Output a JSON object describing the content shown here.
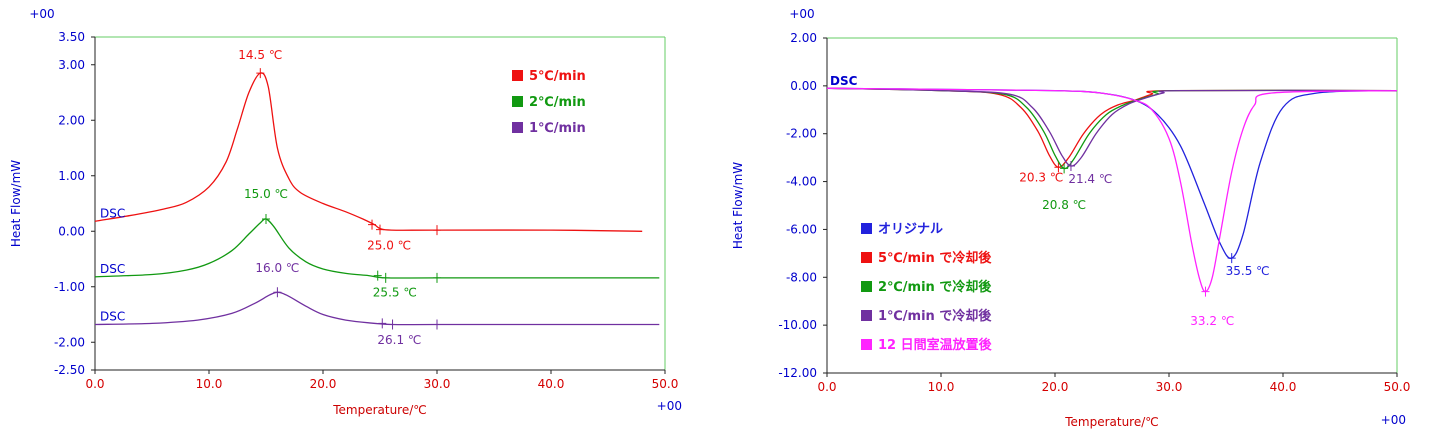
{
  "colors": {
    "axis_text": "#0000cc",
    "tick_label": "#d40000",
    "axis_title": "#cc0000",
    "plot_border": "#66cc66",
    "red": "#ee1111",
    "green": "#119911",
    "purple": "#7030a0",
    "blue": "#2222dd",
    "magenta": "#ff22ff",
    "curve_label": "#0000cc"
  },
  "chart_data": [
    {
      "type": "line",
      "xlabel": "Temperature/℃",
      "ylabel": "Heat Flow/mW",
      "xlim": [
        0,
        50
      ],
      "ylim": [
        -2.5,
        3.5
      ],
      "x_ticks": [
        0,
        10,
        20,
        30,
        40,
        50
      ],
      "x_tick_labels": [
        "0.0",
        "10.0",
        "20.0",
        "30.0",
        "40.0",
        "50.0"
      ],
      "y_ticks": [
        3.5,
        3.0,
        2.0,
        1.0,
        0.0,
        -1.0,
        -2.0,
        -2.5
      ],
      "y_tick_labels": [
        "3.50",
        "3.00",
        "2.00",
        "1.00",
        "0.00",
        "-1.00",
        "-2.00",
        "-2.50"
      ],
      "x_exponent": "+00",
      "y_exponent": "+00",
      "grid": false,
      "legend_position": "top-right",
      "curve_label": "DSC",
      "series": [
        {
          "name": "5℃/min",
          "color": "red",
          "x": [
            0,
            3,
            6,
            8,
            10,
            11.5,
            12.5,
            13.5,
            14.5,
            15.2,
            16,
            17,
            18,
            20,
            22,
            23.5,
            24.5,
            25,
            26,
            30,
            40,
            48
          ],
          "y": [
            0.18,
            0.28,
            0.4,
            0.52,
            0.8,
            1.25,
            1.85,
            2.5,
            2.85,
            2.6,
            1.5,
            0.95,
            0.7,
            0.5,
            0.35,
            0.22,
            0.12,
            0.05,
            0.02,
            0.02,
            0.02,
            0.0
          ],
          "markers": [
            {
              "x": 14.5,
              "y": 2.85
            },
            {
              "x": 24.3,
              "y": 0.12
            },
            {
              "x": 25.0,
              "y": 0.03
            },
            {
              "x": 30.0,
              "y": 0.02
            }
          ],
          "labels": [
            {
              "text": "14.5 ℃",
              "x": 14.5,
              "y": 3.1
            },
            {
              "text": "25.0 ℃",
              "x": 25.8,
              "y": -0.33
            }
          ]
        },
        {
          "name": "2℃/min",
          "color": "green",
          "x": [
            0,
            5,
            8,
            10,
            12,
            13.5,
            14.5,
            15.0,
            15.7,
            17,
            18.5,
            20,
            22,
            24,
            25.5,
            30,
            40,
            49.5
          ],
          "y": [
            -0.82,
            -0.78,
            -0.7,
            -0.58,
            -0.35,
            -0.05,
            0.15,
            0.22,
            0.08,
            -0.3,
            -0.55,
            -0.68,
            -0.76,
            -0.8,
            -0.84,
            -0.84,
            -0.84,
            -0.84
          ],
          "markers": [
            {
              "x": 15.0,
              "y": 0.22
            },
            {
              "x": 24.8,
              "y": -0.8
            },
            {
              "x": 25.5,
              "y": -0.84
            },
            {
              "x": 30.0,
              "y": -0.84
            }
          ],
          "labels": [
            {
              "text": "15.0 ℃",
              "x": 15.0,
              "y": 0.6
            },
            {
              "text": "25.5 ℃",
              "x": 26.3,
              "y": -1.18
            }
          ]
        },
        {
          "name": "1℃/min",
          "color": "purple",
          "x": [
            0,
            5,
            9,
            12,
            14,
            15.3,
            16.0,
            16.8,
            18.5,
            20,
            22,
            24,
            26.1,
            30,
            40,
            49.5
          ],
          "y": [
            -1.68,
            -1.66,
            -1.6,
            -1.48,
            -1.3,
            -1.15,
            -1.1,
            -1.15,
            -1.35,
            -1.5,
            -1.6,
            -1.65,
            -1.68,
            -1.68,
            -1.68,
            -1.68
          ],
          "markers": [
            {
              "x": 16.0,
              "y": -1.1
            },
            {
              "x": 25.2,
              "y": -1.66
            },
            {
              "x": 26.1,
              "y": -1.68
            },
            {
              "x": 30.0,
              "y": -1.68
            }
          ],
          "labels": [
            {
              "text": "16.0 ℃",
              "x": 16.0,
              "y": -0.73
            },
            {
              "text": "26.1 ℃",
              "x": 26.7,
              "y": -2.03
            }
          ]
        }
      ]
    },
    {
      "type": "line",
      "xlabel": "Temperature/℃",
      "ylabel": "Heat Flow/mW",
      "xlim": [
        0,
        50
      ],
      "ylim": [
        -12,
        2
      ],
      "x_ticks": [
        0,
        10,
        20,
        30,
        40,
        50
      ],
      "x_tick_labels": [
        "0.0",
        "10.0",
        "20.0",
        "30.0",
        "40.0",
        "50.0"
      ],
      "y_ticks": [
        2,
        0,
        -2,
        -4,
        -6,
        -8,
        -10,
        -12
      ],
      "y_tick_labels": [
        "2.00",
        "0.00",
        "-2.00",
        "-4.00",
        "-6.00",
        "-8.00",
        "-10.00",
        "-12.00"
      ],
      "x_exponent": "+00",
      "y_exponent": "+00",
      "grid": false,
      "legend_position": "bottom-left",
      "curve_label": "DSC",
      "series": [
        {
          "name": "オリジナル",
          "color": "blue",
          "x": [
            0,
            10,
            20,
            24,
            27,
            29,
            31,
            33,
            34.5,
            35.5,
            36.5,
            38,
            40,
            43,
            50
          ],
          "y": [
            -0.1,
            -0.15,
            -0.2,
            -0.3,
            -0.6,
            -1.2,
            -2.5,
            -4.8,
            -6.6,
            -7.2,
            -6.2,
            -3.2,
            -0.9,
            -0.3,
            -0.2
          ],
          "markers": [
            {
              "x": 35.5,
              "y": -7.2
            }
          ],
          "labels": [
            {
              "text": "35.5 ℃",
              "x": 36.9,
              "y": -7.9
            }
          ]
        },
        {
          "name": "5℃/min で冷却後",
          "color": "red",
          "x": [
            0,
            10,
            15,
            17,
            18.5,
            19.5,
            20.3,
            21.2,
            22.5,
            24,
            25.5,
            27,
            28.5,
            30,
            50
          ],
          "y": [
            -0.1,
            -0.2,
            -0.35,
            -0.9,
            -1.9,
            -2.9,
            -3.4,
            -3.0,
            -2.0,
            -1.2,
            -0.8,
            -0.6,
            -0.35,
            -0.2,
            -0.2
          ],
          "markers": [
            {
              "x": 20.3,
              "y": -3.4
            }
          ],
          "labels": [
            {
              "text": "20.3 ℃",
              "x": 18.8,
              "y": -4.0
            }
          ]
        },
        {
          "name": "2℃/min で冷却後",
          "color": "green",
          "x": [
            0,
            10,
            15.5,
            17.5,
            19,
            20,
            20.8,
            21.6,
            23,
            24.5,
            26,
            27.5,
            29,
            30.5,
            50
          ],
          "y": [
            -0.1,
            -0.2,
            -0.35,
            -0.9,
            -1.9,
            -2.9,
            -3.45,
            -3.1,
            -2.0,
            -1.2,
            -0.8,
            -0.55,
            -0.35,
            -0.2,
            -0.2
          ],
          "markers": [
            {
              "x": 20.8,
              "y": -3.45
            }
          ],
          "labels": [
            {
              "text": "20.8 ℃",
              "x": 20.8,
              "y": -5.15
            }
          ]
        },
        {
          "name": "1℃/min で冷却後",
          "color": "purple",
          "x": [
            0,
            10,
            16,
            18,
            19.5,
            20.6,
            21.4,
            22.3,
            23.6,
            25,
            26.5,
            28,
            29.5,
            31,
            50
          ],
          "y": [
            -0.1,
            -0.2,
            -0.35,
            -0.9,
            -1.9,
            -2.9,
            -3.35,
            -3.0,
            -2.0,
            -1.2,
            -0.75,
            -0.5,
            -0.3,
            -0.2,
            -0.2
          ],
          "markers": [
            {
              "x": 21.4,
              "y": -3.35
            }
          ],
          "labels": [
            {
              "text": "21.4 ℃",
              "x": 23.1,
              "y": -4.05
            }
          ]
        },
        {
          "name": "12 日間室温放置後",
          "color": "magenta",
          "x": [
            0,
            10,
            20,
            24,
            27,
            28.5,
            30,
            31,
            32,
            32.7,
            33.2,
            33.8,
            34.5,
            35.5,
            36.5,
            37.5,
            39,
            50
          ],
          "y": [
            -0.1,
            -0.15,
            -0.2,
            -0.3,
            -0.6,
            -1.0,
            -2.2,
            -4.0,
            -6.6,
            -8.1,
            -8.6,
            -8.0,
            -6.2,
            -3.6,
            -1.8,
            -0.8,
            -0.3,
            -0.2
          ],
          "markers": [
            {
              "x": 33.2,
              "y": -8.6
            }
          ],
          "labels": [
            {
              "text": "33.2 ℃",
              "x": 33.8,
              "y": -10.0
            }
          ]
        }
      ]
    }
  ]
}
